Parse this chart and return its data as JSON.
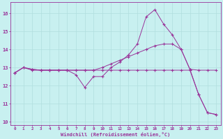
{
  "xlabel": "Windchill (Refroidissement éolien,°C)",
  "background_color": "#c8f0f0",
  "grid_color": "#b0dede",
  "line_color": "#993399",
  "ylim": [
    9.8,
    16.6
  ],
  "xlim": [
    -0.5,
    23.5
  ],
  "yticks": [
    10,
    11,
    12,
    13,
    14,
    15,
    16
  ],
  "xticks": [
    0,
    1,
    2,
    3,
    4,
    5,
    6,
    7,
    8,
    9,
    10,
    11,
    12,
    13,
    14,
    15,
    16,
    17,
    18,
    19,
    20,
    21,
    22,
    23
  ],
  "series": [
    [
      12.7,
      13.0,
      12.9,
      12.85,
      12.85,
      12.85,
      12.85,
      12.6,
      11.9,
      12.5,
      12.5,
      13.0,
      13.3,
      13.7,
      14.3,
      15.8,
      16.2,
      15.4,
      14.8,
      14.0,
      12.9,
      11.5,
      10.5,
      10.4
    ],
    [
      12.7,
      13.0,
      12.9,
      12.85,
      12.85,
      12.85,
      12.85,
      12.85,
      12.85,
      12.85,
      13.0,
      13.2,
      13.4,
      13.6,
      13.8,
      14.0,
      14.2,
      14.3,
      14.3,
      14.0,
      12.9,
      12.85,
      12.85,
      12.85
    ],
    [
      12.7,
      13.0,
      12.85,
      12.85,
      12.85,
      12.85,
      12.85,
      12.85,
      12.85,
      12.85,
      12.85,
      12.85,
      12.85,
      12.85,
      12.85,
      12.85,
      12.85,
      12.85,
      12.85,
      12.85,
      12.85,
      11.5,
      10.5,
      10.4
    ]
  ],
  "figsize": [
    3.2,
    2.0
  ],
  "dpi": 100
}
